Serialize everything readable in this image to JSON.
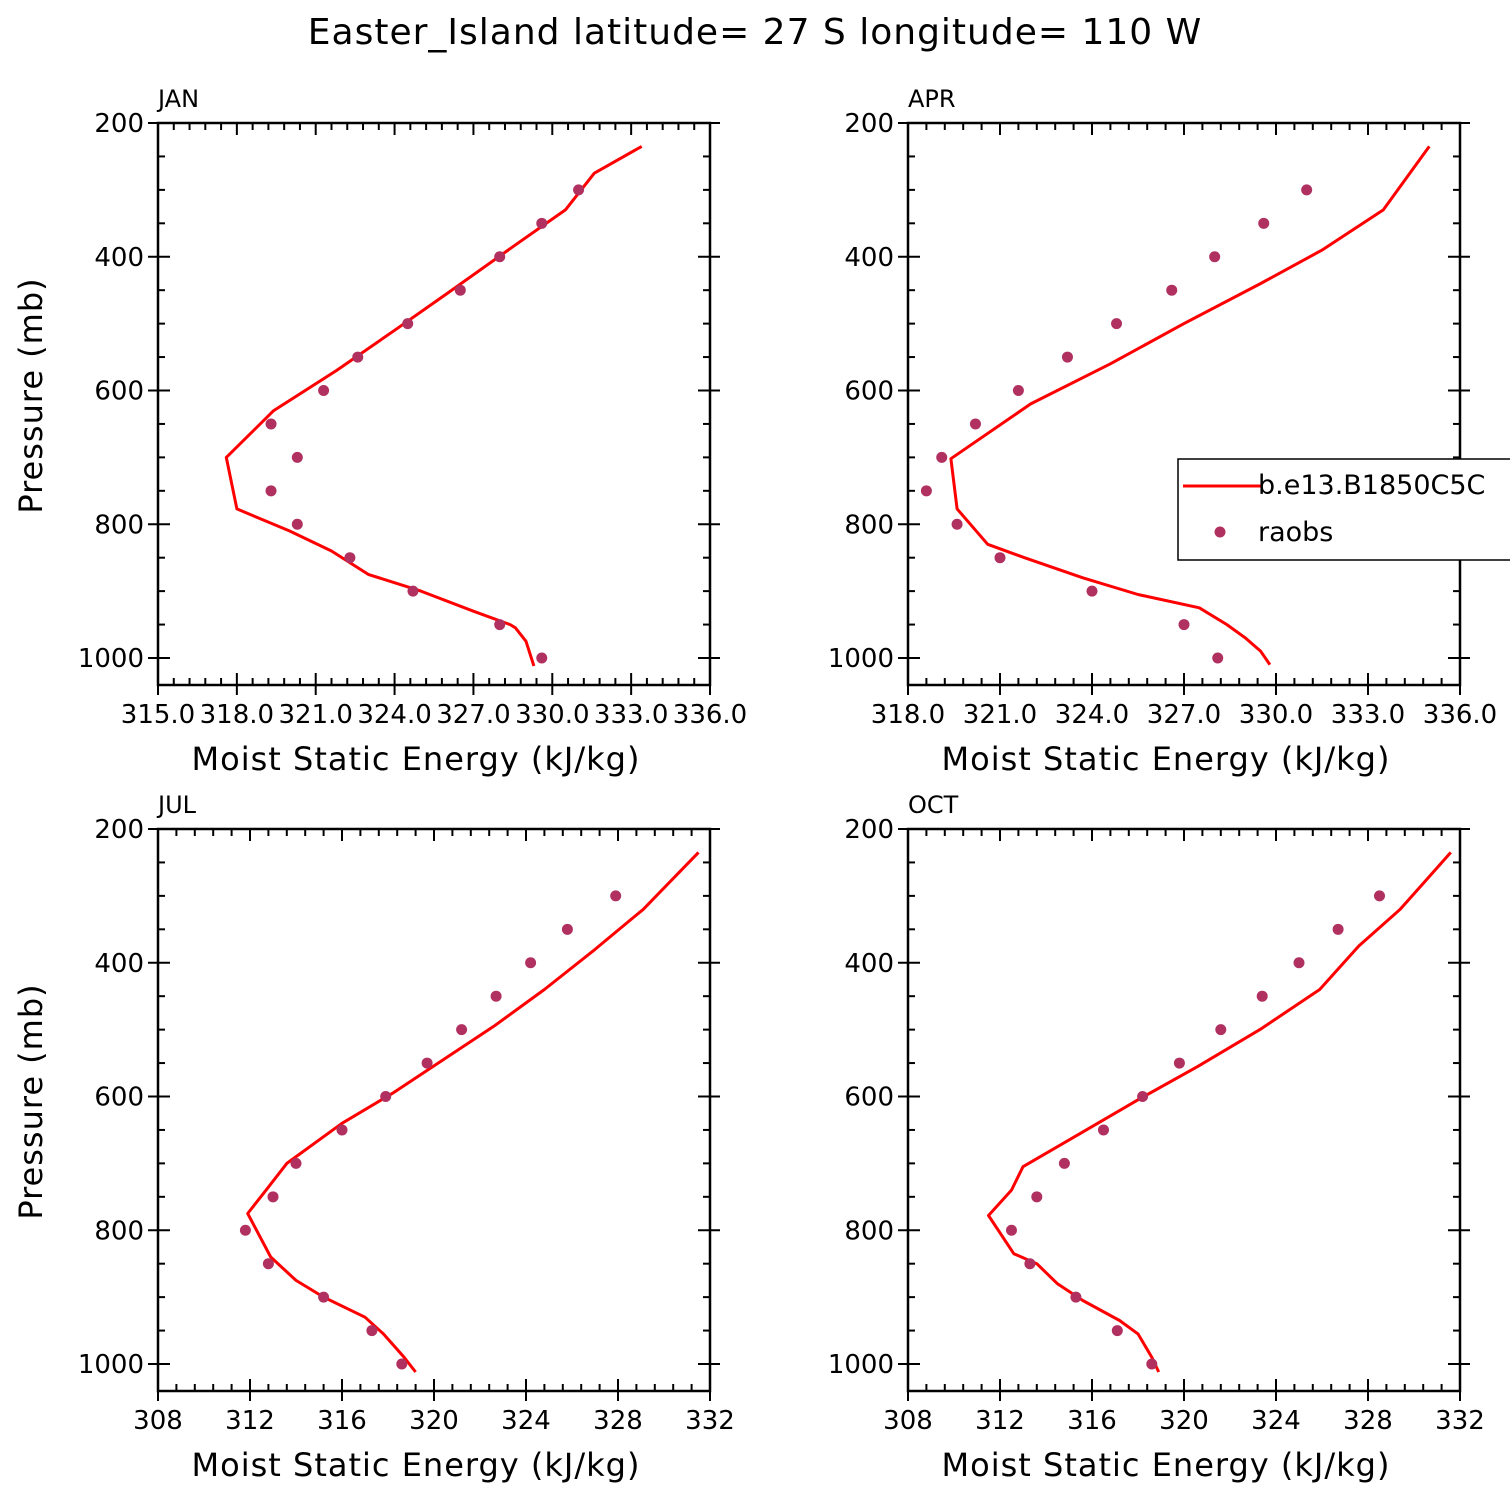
{
  "figure": {
    "title": "Easter_Island  latitude= 27 S longitude= 110 W",
    "model_color": "#ff0000",
    "obs_color": "#b03060"
  },
  "legend": {
    "entries": [
      {
        "label": "b.e13.B1850C5C",
        "style": "line"
      },
      {
        "label": "raobs",
        "style": "marker"
      }
    ],
    "placement": "right, overlapping APR panel"
  },
  "chart_data": [
    {
      "type": "line",
      "panel": "JAN",
      "title": "JAN",
      "xlabel": "Moist Static Energy (kJ/kg)",
      "ylabel": "Pressure (mb)",
      "xlim": [
        315,
        336
      ],
      "ylim": [
        1000,
        200
      ],
      "yscale": "linear, inverted",
      "xticks": [
        "315.0",
        "318.0",
        "321.0",
        "324.0",
        "327.0",
        "330.0",
        "333.0",
        "336.0"
      ],
      "yticks": [
        "200",
        "400",
        "600",
        "800",
        "1000"
      ],
      "series": [
        {
          "name": "b.e13.B1850C5C",
          "kind": "line",
          "x": [
            329.3,
            329.0,
            328.6,
            328.4,
            327.0,
            325.0,
            323.0,
            321.6,
            320.0,
            318.0,
            317.6,
            319.4,
            321.8,
            324.0,
            326.0,
            328.5,
            330.5,
            331.6,
            333.4
          ],
          "y": [
            1012,
            975,
            955,
            950,
            930,
            900,
            875,
            840,
            810,
            777,
            700,
            630,
            570,
            510,
            455,
            385,
            330,
            275,
            235
          ]
        },
        {
          "name": "raobs",
          "kind": "scatter",
          "x": [
            329.6,
            328.0,
            324.7,
            322.3,
            320.3,
            319.3,
            320.3,
            319.3,
            321.3,
            322.6,
            324.5,
            326.5,
            328.0,
            329.6,
            331.0
          ],
          "y": [
            1000,
            950,
            900,
            850,
            800,
            750,
            700,
            650,
            600,
            550,
            500,
            450,
            400,
            350,
            300
          ]
        }
      ]
    },
    {
      "type": "line",
      "panel": "APR",
      "title": "APR",
      "xlabel": "Moist Static Energy (kJ/kg)",
      "ylabel": "",
      "xlim": [
        318,
        336
      ],
      "ylim": [
        1000,
        200
      ],
      "yscale": "linear, inverted",
      "xticks": [
        "318.0",
        "321.0",
        "324.0",
        "327.0",
        "330.0",
        "333.0",
        "336.0"
      ],
      "yticks": [
        "200",
        "400",
        "600",
        "800",
        "1000"
      ],
      "series": [
        {
          "name": "b.e13.B1850C5C",
          "kind": "line",
          "x": [
            329.8,
            329.5,
            329.0,
            328.4,
            327.5,
            325.5,
            323.7,
            321.8,
            320.6,
            319.6,
            319.4,
            322.0,
            324.6,
            327.0,
            329.5,
            331.5,
            333.5,
            335.0
          ],
          "y": [
            1010,
            990,
            970,
            950,
            925,
            905,
            880,
            850,
            830,
            777,
            702,
            620,
            560,
            500,
            440,
            390,
            330,
            235
          ]
        },
        {
          "name": "raobs",
          "kind": "scatter",
          "x": [
            328.1,
            327.0,
            324.0,
            321.0,
            319.6,
            318.6,
            319.1,
            320.2,
            321.6,
            323.2,
            324.8,
            326.6,
            328.0,
            329.6,
            331.0
          ],
          "y": [
            1000,
            950,
            900,
            850,
            800,
            750,
            700,
            650,
            600,
            550,
            500,
            450,
            400,
            350,
            300
          ]
        }
      ]
    },
    {
      "type": "line",
      "panel": "JUL",
      "title": "JUL",
      "xlabel": "Moist Static Energy (kJ/kg)",
      "ylabel": "Pressure (mb)",
      "xlim": [
        308,
        332
      ],
      "ylim": [
        1000,
        200
      ],
      "yscale": "linear, inverted",
      "xticks": [
        "308",
        "312",
        "316",
        "320",
        "324",
        "328",
        "332"
      ],
      "yticks": [
        "200",
        "400",
        "600",
        "800",
        "1000"
      ],
      "series": [
        {
          "name": "b.e13.B1850C5C",
          "kind": "line",
          "x": [
            319.2,
            318.7,
            317.8,
            317.0,
            315.2,
            314.0,
            312.9,
            311.9,
            312.7,
            313.6,
            316.0,
            318.2,
            320.4,
            322.6,
            324.8,
            327.0,
            329.1,
            331.5
          ],
          "y": [
            1012,
            990,
            955,
            930,
            900,
            875,
            840,
            775,
            740,
            700,
            640,
            595,
            545,
            495,
            440,
            380,
            320,
            235
          ]
        },
        {
          "name": "raobs",
          "kind": "scatter",
          "x": [
            318.6,
            317.3,
            315.2,
            312.8,
            311.8,
            313.0,
            314.0,
            316.0,
            317.9,
            319.7,
            321.2,
            322.7,
            324.2,
            325.8,
            327.9
          ],
          "y": [
            1000,
            950,
            900,
            850,
            800,
            750,
            700,
            650,
            600,
            550,
            500,
            450,
            400,
            350,
            300
          ]
        }
      ]
    },
    {
      "type": "line",
      "panel": "OCT",
      "title": "OCT",
      "xlabel": "Moist Static Energy (kJ/kg)",
      "ylabel": "",
      "xlim": [
        308,
        332
      ],
      "ylim": [
        1000,
        200
      ],
      "yscale": "linear, inverted",
      "xticks": [
        "308",
        "312",
        "316",
        "320",
        "324",
        "328",
        "332"
      ],
      "yticks": [
        "200",
        "400",
        "600",
        "800",
        "1000"
      ],
      "series": [
        {
          "name": "b.e13.B1850C5C",
          "kind": "line",
          "x": [
            318.9,
            318.6,
            318.0,
            317.2,
            315.6,
            314.5,
            313.6,
            312.6,
            311.5,
            312.5,
            313.0,
            315.5,
            318.0,
            320.6,
            323.3,
            325.9,
            327.6,
            329.4,
            331.6
          ],
          "y": [
            1012,
            990,
            955,
            935,
            905,
            880,
            850,
            835,
            778,
            740,
            705,
            655,
            605,
            555,
            500,
            440,
            375,
            320,
            235
          ]
        },
        {
          "name": "raobs",
          "kind": "scatter",
          "x": [
            318.6,
            317.1,
            315.3,
            313.3,
            312.5,
            313.6,
            314.8,
            316.5,
            318.2,
            319.8,
            321.6,
            323.4,
            325.0,
            326.7,
            328.5
          ],
          "y": [
            1000,
            950,
            900,
            850,
            800,
            750,
            700,
            650,
            600,
            550,
            500,
            450,
            400,
            350,
            300
          ]
        }
      ]
    }
  ]
}
